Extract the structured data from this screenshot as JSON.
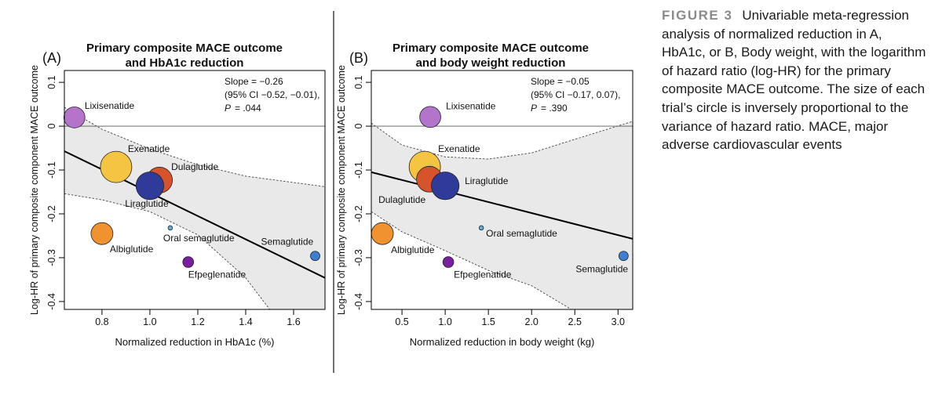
{
  "chart_data": [
    {
      "type": "bubble",
      "panel": "(A)",
      "title": [
        "Primary composite MACE outcome",
        "and HbA1c reduction"
      ],
      "annotations": [
        "Slope = −0.26",
        "(95% CI −0.52, −0.01),",
        "P",
        "= .044"
      ],
      "x_label": "Normalized reduction in HbA1c (%)",
      "y_label": "Log-HR of primary composite component MACE outcome",
      "xlim": [
        0.643,
        1.731
      ],
      "ylim": [
        -0.418,
        0.127
      ],
      "xticks": [
        0.8,
        {
          "value": 1,
          "label": "1.0"
        },
        1.2,
        1.4,
        1.6
      ],
      "yticks": [
        0.1,
        0,
        -0.1,
        -0.2,
        -0.3,
        -0.4
      ],
      "reference_line": 0,
      "labels": [
        "Lixisenatide",
        "Exenatide",
        "Dulaglutide",
        "Liraglutide",
        "Albiglutide",
        "Oral semaglutide",
        "Efpeglenatide",
        "Semaglutide"
      ],
      "colors": [
        "#b574cc",
        "#f6c443",
        "#d6532b",
        "#2f3b98",
        "#ef922f",
        "#5eb1e2",
        "#7a1fa0",
        "#3c7fd3"
      ],
      "x": [
        0.685,
        0.859,
        1.04,
        1.0,
        0.8,
        1.085,
        1.16,
        1.69
      ],
      "values": [
        0.02,
        -0.093,
        -0.123,
        -0.136,
        -0.245,
        -0.232,
        -0.31,
        -0.296
      ],
      "sizes": [
        45,
        100,
        68,
        78,
        49,
        2,
        12,
        9
      ],
      "fit": {
        "x": [
          0.643,
          1.731
        ],
        "values": [
          -0.057,
          -0.346
        ]
      },
      "ci_upper": {
        "x": [
          0.643,
          0.8,
          1.0,
          1.2,
          1.4,
          1.731
        ],
        "values": [
          0.043,
          -0.007,
          -0.052,
          -0.088,
          -0.114,
          -0.138
        ]
      },
      "ci_lower": {
        "x": [
          0.643,
          0.8,
          1.0,
          1.2,
          1.4,
          1.5
        ],
        "values": [
          -0.154,
          -0.168,
          -0.195,
          -0.248,
          -0.346,
          -0.418
        ]
      }
    },
    {
      "type": "bubble",
      "panel": "(B)",
      "title": [
        "Primary composite MACE outcome",
        "and body weight reduction"
      ],
      "annotations": [
        "Slope = −0.05",
        "(95% CI −0.17, 0.07),",
        "P",
        "= .390"
      ],
      "x_label": "Normalized reduction in body weight (kg)",
      "y_label": "Log-HR of primary composite component MACE outcome",
      "xlim": [
        0.145,
        3.17
      ],
      "ylim": [
        -0.418,
        0.127
      ],
      "xticks": [
        0.5,
        {
          "value": 1,
          "label": "1.0"
        },
        1.5,
        {
          "value": 2,
          "label": "2.0"
        },
        2.5,
        {
          "value": 3,
          "label": "3.0"
        }
      ],
      "yticks": [
        0.1,
        0,
        -0.1,
        -0.2,
        -0.3,
        -0.4
      ],
      "reference_line": 0,
      "labels": [
        "Lixisenatide",
        "Exenatide",
        "Dulaglutide",
        "Liraglutide",
        "Albiglutide",
        "Oral semaglutide",
        "Efpeglenatide",
        "Semaglutide"
      ],
      "colors": [
        "#b574cc",
        "#f6c443",
        "#d6532b",
        "#2f3b98",
        "#ef922f",
        "#5eb1e2",
        "#7a1fa0",
        "#3c7fd3"
      ],
      "x": [
        0.827,
        0.764,
        0.818,
        1.0,
        0.273,
        1.418,
        1.036,
        3.064
      ],
      "values": [
        0.021,
        -0.093,
        -0.121,
        -0.136,
        -0.245,
        -0.232,
        -0.31,
        -0.296
      ],
      "sizes": [
        45,
        100,
        68,
        78,
        49,
        2,
        12,
        9
      ],
      "fit": {
        "x": [
          0.145,
          3.17
        ],
        "values": [
          -0.105,
          -0.257
        ]
      },
      "ci_upper": {
        "x": [
          0.145,
          0.5,
          1.0,
          1.5,
          2.0,
          2.5,
          3.17
        ],
        "values": [
          0.007,
          -0.043,
          -0.07,
          -0.075,
          -0.061,
          -0.03,
          0.011
        ]
      },
      "ci_lower": {
        "x": [
          0.145,
          0.5,
          1.0,
          1.5,
          2.0,
          2.46
        ],
        "values": [
          -0.195,
          -0.241,
          -0.284,
          -0.329,
          -0.364,
          -0.418
        ]
      }
    }
  ],
  "caption": {
    "label": "FIGURE 3",
    "text": "Univariable meta-regression analysis of normalized reduction in A, HbA1c, or B, Body weight, with the logarithm of hazard ratio (log-HR) for the primary composite MACE outcome. The size of each trial’s circle is inversely proportional to the variance of hazard ratio. MACE, major adverse cardiovascular events"
  }
}
